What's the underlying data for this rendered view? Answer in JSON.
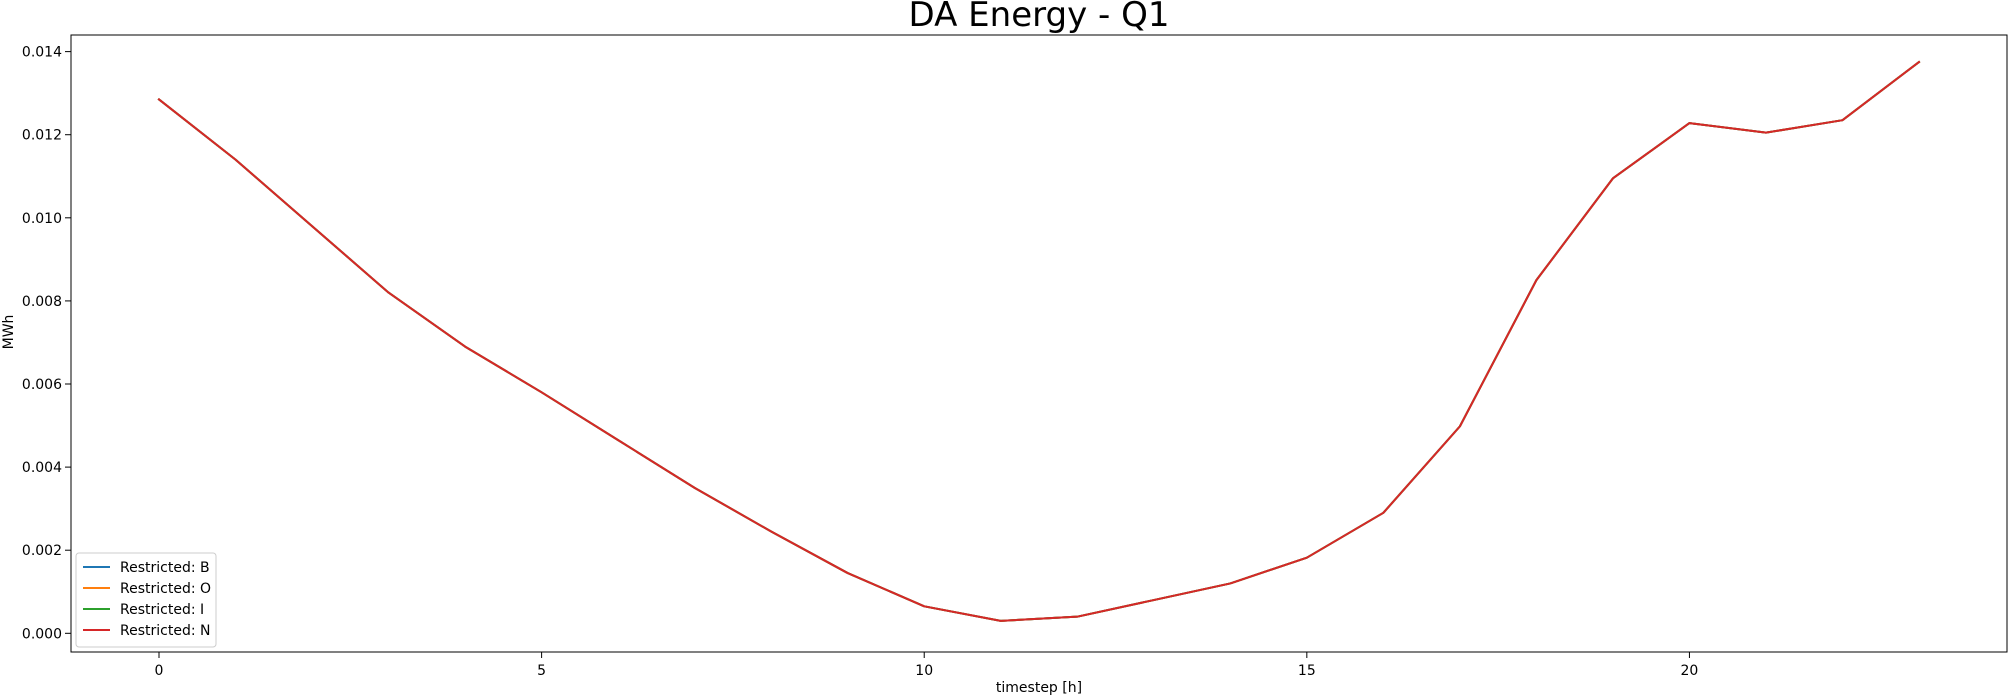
{
  "chart_data": {
    "type": "line",
    "title": "DA Energy - Q1",
    "xlabel": "timestep [h]",
    "ylabel": "MWh",
    "xlim": [
      -1.15,
      24.15
    ],
    "ylim": [
      -0.00045,
      0.0144
    ],
    "xticks": [
      0,
      5,
      10,
      15,
      20
    ],
    "xtick_labels": [
      "0",
      "5",
      "10",
      "15",
      "20"
    ],
    "yticks": [
      0.0,
      0.002,
      0.004,
      0.006,
      0.008,
      0.01,
      0.012,
      0.014
    ],
    "ytick_labels": [
      "0.000",
      "0.002",
      "0.004",
      "0.006",
      "0.008",
      "0.010",
      "0.012",
      "0.014"
    ],
    "grid": false,
    "legend_position": "lower-left",
    "x": [
      0,
      1,
      2,
      3,
      4,
      5,
      6,
      7,
      8,
      9,
      10,
      11,
      12,
      13,
      14,
      15,
      16,
      17,
      18,
      19,
      20,
      21,
      22,
      23
    ],
    "series": [
      {
        "name": "Restricted: B",
        "color": "#1f77b4",
        "values": [
          0.01285,
          0.0114,
          0.0098,
          0.0082,
          0.0069,
          0.0058,
          0.00465,
          0.0035,
          0.00245,
          0.00145,
          0.00065,
          0.0003,
          0.0004,
          0.0008,
          0.0012,
          0.00182,
          0.0029,
          0.00498,
          0.0085,
          0.01095,
          0.01228,
          0.01205,
          0.01235,
          0.01375
        ]
      },
      {
        "name": "Restricted: O",
        "color": "#ff7f0e",
        "values": [
          0.01285,
          0.0114,
          0.0098,
          0.0082,
          0.0069,
          0.0058,
          0.00465,
          0.0035,
          0.00245,
          0.00145,
          0.00065,
          0.0003,
          0.0004,
          0.0008,
          0.0012,
          0.00182,
          0.0029,
          0.00498,
          0.0085,
          0.01095,
          0.01228,
          0.01205,
          0.01235,
          0.01375
        ]
      },
      {
        "name": "Restricted: I",
        "color": "#2ca02c",
        "values": [
          0.01285,
          0.0114,
          0.0098,
          0.0082,
          0.0069,
          0.0058,
          0.00465,
          0.0035,
          0.00245,
          0.00145,
          0.00065,
          0.0003,
          0.0004,
          0.0008,
          0.0012,
          0.00182,
          0.0029,
          0.00498,
          0.0085,
          0.01095,
          0.01228,
          0.01205,
          0.01235,
          0.01375
        ]
      },
      {
        "name": "Restricted: N",
        "color": "#d62728",
        "values": [
          0.01285,
          0.0114,
          0.0098,
          0.0082,
          0.0069,
          0.0058,
          0.00465,
          0.0035,
          0.00245,
          0.00145,
          0.00065,
          0.0003,
          0.0004,
          0.0008,
          0.0012,
          0.00182,
          0.0029,
          0.00498,
          0.0085,
          0.01095,
          0.01228,
          0.01205,
          0.01235,
          0.01375
        ]
      }
    ]
  }
}
